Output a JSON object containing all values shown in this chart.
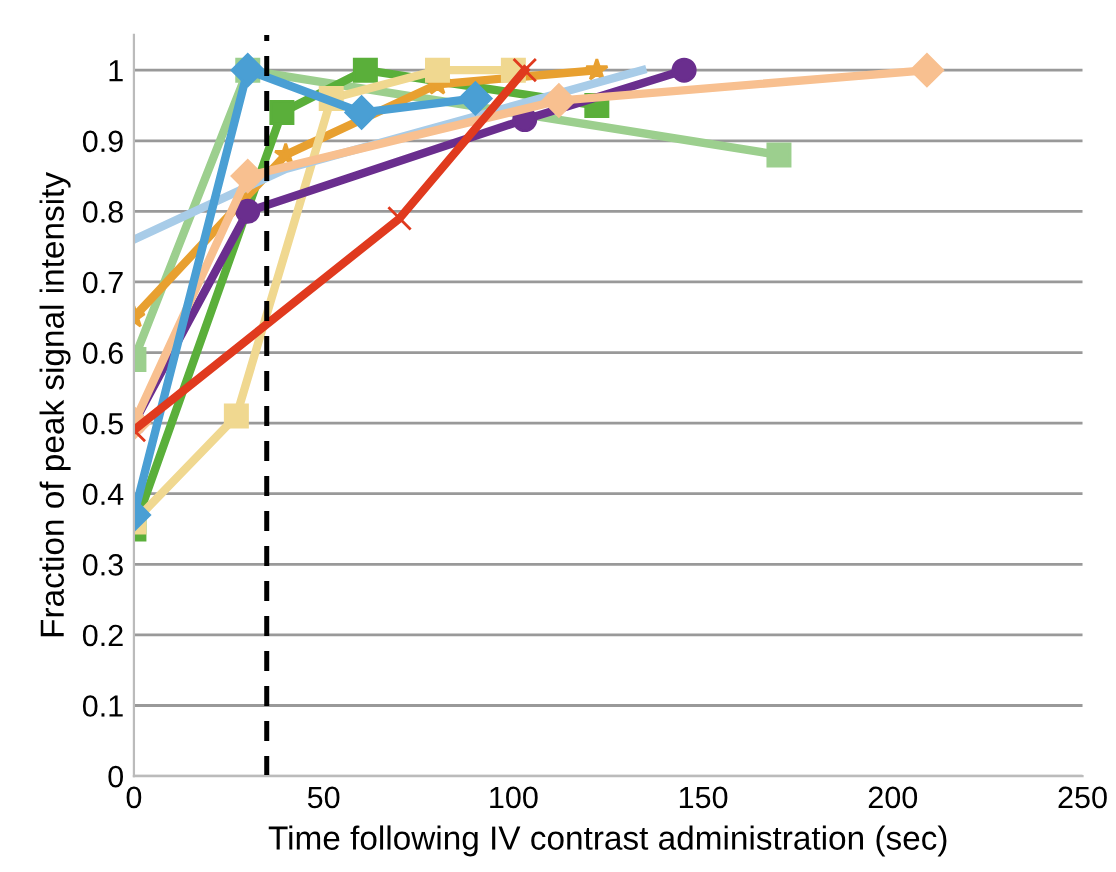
{
  "chart_data": {
    "type": "line",
    "xlabel": "Time following IV contrast administration (sec)",
    "ylabel": "Fraction of peak signal intensity",
    "xlim": [
      0,
      250
    ],
    "xticks": [
      0,
      50,
      100,
      150,
      200,
      250
    ],
    "ylim": [
      0,
      1.05
    ],
    "yticks": [
      0,
      0.1,
      0.2,
      0.3,
      0.4,
      0.5,
      0.6,
      0.7,
      0.8,
      0.9,
      1
    ],
    "grid": "y",
    "ref_lines": [
      {
        "axis": "x",
        "value": 35,
        "color": "#000000",
        "line_style": "dashed"
      }
    ],
    "series": [
      {
        "color": "#9ccf8e",
        "marker": "square",
        "x": [
          0,
          30,
          170
        ],
        "values": [
          0.59,
          1.0,
          0.88
        ]
      },
      {
        "color": "#5aaf3a",
        "marker": "square",
        "x": [
          0,
          39,
          61,
          122
        ],
        "values": [
          0.35,
          0.94,
          1.0,
          0.95
        ]
      },
      {
        "color": "#e8a030",
        "marker": "star",
        "x": [
          0,
          40,
          80,
          122
        ],
        "values": [
          0.65,
          0.88,
          0.98,
          1.0
        ]
      },
      {
        "color": "#f0d890",
        "marker": "square",
        "x": [
          0,
          27,
          52,
          80,
          100
        ],
        "values": [
          0.36,
          0.51,
          0.96,
          1.0,
          1.0
        ]
      },
      {
        "color": "#6a2e8e",
        "marker": "circle",
        "x": [
          0,
          30,
          103,
          145
        ],
        "values": [
          0.5,
          0.8,
          0.93,
          1.0
        ]
      },
      {
        "color": "#a8cce8",
        "marker": "none",
        "x": [
          0,
          40,
          134
        ],
        "values": [
          0.76,
          0.86,
          1.0
        ]
      },
      {
        "color": "#f8c090",
        "marker": "diamond",
        "x": [
          0,
          30,
          112,
          209
        ],
        "values": [
          0.5,
          0.85,
          0.957,
          1.0
        ]
      },
      {
        "color": "#4a9fd4",
        "marker": "diamond",
        "x": [
          0,
          30,
          60,
          90
        ],
        "values": [
          0.37,
          1.0,
          0.94,
          0.96
        ]
      },
      {
        "color": "#e03a1e",
        "marker": "cross",
        "x": [
          0,
          70,
          103
        ],
        "values": [
          0.49,
          0.79,
          1.0
        ]
      }
    ]
  }
}
